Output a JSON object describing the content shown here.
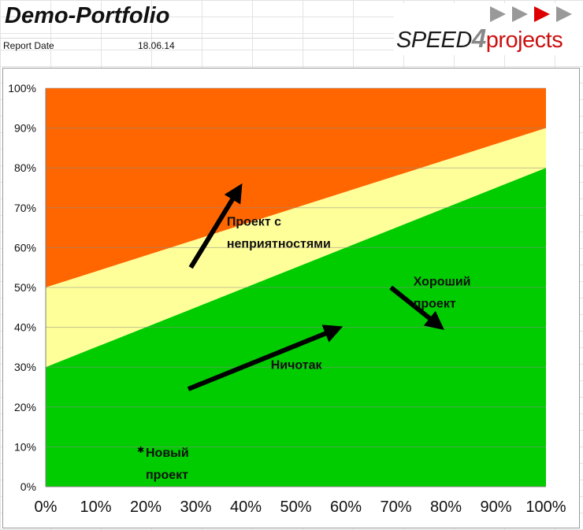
{
  "header": {
    "title": "Demo-Portfolio",
    "report_date_label": "Report Date",
    "report_date_value": "18.06.14",
    "logo": {
      "speed": "SPEED",
      "four": "4",
      "projects": "projects"
    }
  },
  "colors": {
    "red_zone": "#ff6600",
    "yellow_zone": "#ffff99",
    "green_zone": "#00cc00",
    "arrow": "#000000",
    "logo_arrow_gray": "#999999",
    "logo_arrow_red": "#dd0000"
  },
  "chart_data": {
    "type": "area",
    "title": "",
    "xlabel": "",
    "ylabel": "",
    "xlim": [
      0,
      1
    ],
    "ylim": [
      0,
      1
    ],
    "x_ticks": [
      "0%",
      "10%",
      "20%",
      "30%",
      "40%",
      "50%",
      "60%",
      "70%",
      "80%",
      "90%",
      "100%"
    ],
    "y_ticks": [
      "0%",
      "10%",
      "20%",
      "30%",
      "40%",
      "50%",
      "60%",
      "70%",
      "80%",
      "90%",
      "100%"
    ],
    "grid": "horizontal",
    "zones": [
      {
        "color": "#ff6600",
        "lower_line": [
          [
            0,
            0.5
          ],
          [
            1,
            0.9
          ]
        ],
        "upper_line": [
          [
            0,
            1.0
          ],
          [
            1,
            1.0
          ]
        ]
      },
      {
        "color": "#ffff99",
        "lower_line": [
          [
            0,
            0.3
          ],
          [
            1,
            0.8
          ]
        ],
        "upper_line": [
          [
            0,
            0.5
          ],
          [
            1,
            0.9
          ]
        ]
      },
      {
        "color": "#00cc00",
        "lower_line": [
          [
            0,
            0.0
          ],
          [
            1,
            0.0
          ]
        ],
        "upper_line": [
          [
            0,
            0.3
          ],
          [
            1,
            0.8
          ]
        ]
      }
    ],
    "arrows": [
      {
        "from": [
          0.29,
          0.55
        ],
        "to": [
          0.385,
          0.745
        ]
      },
      {
        "from": [
          0.285,
          0.245
        ],
        "to": [
          0.58,
          0.395
        ]
      },
      {
        "from": [
          0.69,
          0.5
        ],
        "to": [
          0.785,
          0.405
        ]
      }
    ],
    "points": [
      {
        "x": 0.19,
        "y": 0.095
      }
    ],
    "annotations": [
      {
        "lines": [
          "Проект с",
          "неприятностями"
        ],
        "x": 0.362,
        "y": 0.655
      },
      {
        "lines": [
          "Ничотак"
        ],
        "x": 0.45,
        "y": 0.295
      },
      {
        "lines": [
          "Хороший",
          "проект"
        ],
        "x": 0.735,
        "y": 0.505
      },
      {
        "lines": [
          "Новый",
          "проект"
        ],
        "x": 0.2,
        "y": 0.075
      }
    ]
  }
}
